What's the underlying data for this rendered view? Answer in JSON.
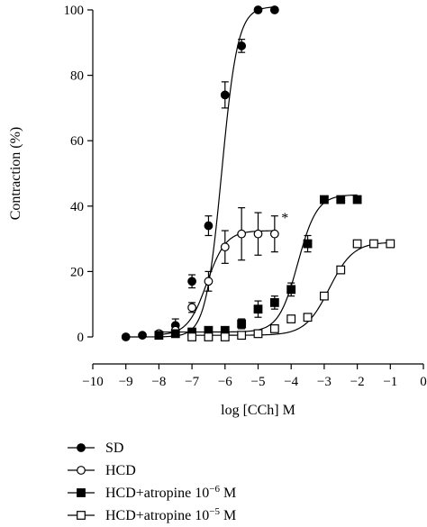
{
  "chart_data": {
    "type": "scatter",
    "title": "",
    "xlabel": "log [CCh] M",
    "ylabel": "Contraction (%)",
    "xlim": [
      -10,
      0
    ],
    "ylim": [
      0,
      100
    ],
    "x_ticks": [
      -10,
      -9,
      -8,
      -7,
      -6,
      -5,
      -4,
      -3,
      -2,
      -1,
      0
    ],
    "y_ticks": [
      0,
      20,
      40,
      60,
      80,
      100
    ],
    "legend_position": "bottom",
    "grid": false,
    "annotations": [
      {
        "text": "*",
        "x": -4.3,
        "y": 35
      }
    ],
    "series": [
      {
        "name": "SD",
        "marker": "filled-circle",
        "x": [
          -9,
          -8.5,
          -8,
          -7.5,
          -7,
          -6.5,
          -6,
          -5.5,
          -5,
          -4.5
        ],
        "y": [
          0,
          0.5,
          1,
          3.5,
          17,
          34,
          74,
          89,
          100,
          100
        ],
        "err": [
          0,
          0,
          0,
          2,
          2,
          3,
          4,
          2,
          0,
          0
        ],
        "fit": {
          "bottom": 0,
          "top": 101,
          "logEC50": -6.1,
          "hill": 1.8
        }
      },
      {
        "name": "HCD",
        "marker": "open-circle",
        "x": [
          -8,
          -7.5,
          -7,
          -6.5,
          -6,
          -5.5,
          -5,
          -4.5
        ],
        "y": [
          1,
          2,
          9,
          17,
          27.5,
          31.5,
          31.5,
          31.5
        ],
        "err": [
          0,
          0,
          1.5,
          3,
          5,
          8,
          6.5,
          5.5
        ],
        "fit": {
          "bottom": 0.5,
          "top": 32.5,
          "logEC50": -6.55,
          "hill": 1.5
        }
      },
      {
        "name": "HCD+atropine 10^-6 M",
        "marker": "filled-square",
        "x": [
          -8,
          -7.5,
          -7,
          -6.5,
          -6,
          -5.5,
          -5,
          -4.5,
          -4,
          -3.5,
          -3,
          -2.5,
          -2
        ],
        "y": [
          0.5,
          1,
          1.5,
          2,
          2,
          4,
          8.5,
          10.5,
          14.5,
          28.5,
          42,
          42,
          42
        ],
        "err": [
          0,
          0,
          0,
          0,
          0.5,
          1.5,
          2.5,
          2,
          2,
          2.5,
          0,
          0,
          0
        ],
        "fit": {
          "bottom": 1.5,
          "top": 43.5,
          "logEC50": -3.8,
          "hill": 1.5
        }
      },
      {
        "name": "HCD+atropine 10^-5 M",
        "marker": "open-square",
        "x": [
          -7,
          -6.5,
          -6,
          -5.5,
          -5,
          -4.5,
          -4,
          -3.5,
          -3,
          -2.5,
          -2,
          -1.5,
          -1
        ],
        "y": [
          0,
          0,
          0,
          0.5,
          1,
          2.5,
          5.5,
          6,
          12.5,
          20.5,
          28.5,
          28.5,
          28.5
        ],
        "err": [
          0,
          0,
          0,
          0,
          0,
          0,
          0,
          0,
          0.5,
          0.5,
          0,
          0,
          0
        ],
        "fit": {
          "bottom": 0.5,
          "top": 29,
          "logEC50": -2.85,
          "hill": 1.2
        }
      }
    ]
  },
  "legend": [
    {
      "marker": "filled-circle",
      "label": "SD"
    },
    {
      "marker": "open-circle",
      "label": "HCD"
    },
    {
      "marker": "filled-square",
      "label": "HCD+atropine 10",
      "sup": "−6",
      "suffix": " M"
    },
    {
      "marker": "open-square",
      "label": "HCD+atropine 10",
      "sup": "−5",
      "suffix": " M"
    }
  ]
}
